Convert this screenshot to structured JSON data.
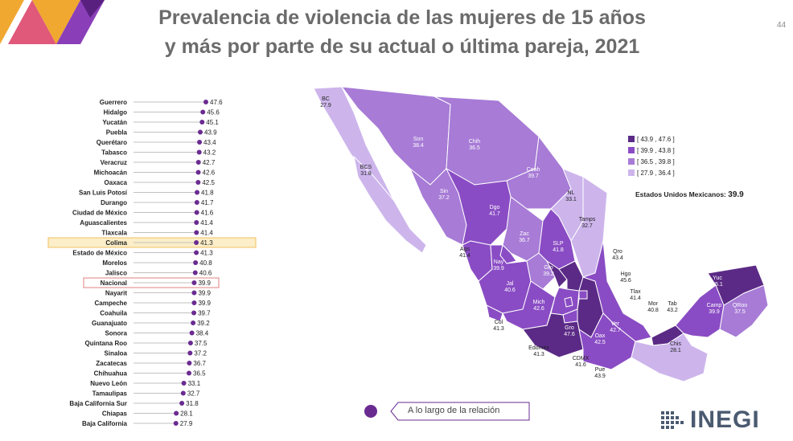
{
  "title_line1": "Prevalencia de violencia de las mujeres de 15 años",
  "title_line2": "y más por parte de su actual o última pareja, 2021",
  "page_number": "44",
  "chart_data": {
    "type": "dot",
    "title": "Prevalencia de violencia de las mujeres de 15 años y más por parte de su actual o última pareja, 2021",
    "xlim": [
      0,
      47.6
    ],
    "highlight": {
      "Colima": "#f0c060",
      "Nacional": "#e08080"
    },
    "categories": [
      "Guerrero",
      "Hidalgo",
      "Yucatán",
      "Puebla",
      "Querétaro",
      "Tabasco",
      "Veracruz",
      "Michoacán",
      "Oaxaca",
      "San Luis Potosí",
      "Durango",
      "Ciudad de México",
      "Aguascalientes",
      "Tlaxcala",
      "Colima",
      "Estado de México",
      "Morelos",
      "Jalisco",
      "Nacional",
      "Nayarit",
      "Campeche",
      "Coahuila",
      "Guanajuato",
      "Sonora",
      "Quintana Roo",
      "Sinaloa",
      "Zacatecas",
      "Chihuahua",
      "Nuevo León",
      "Tamaulipas",
      "Baja California Sur",
      "Chiapas",
      "Baja California"
    ],
    "values": [
      47.6,
      45.6,
      45.1,
      43.9,
      43.4,
      43.2,
      42.7,
      42.6,
      42.5,
      41.8,
      41.7,
      41.6,
      41.4,
      41.4,
      41.3,
      41.3,
      40.8,
      40.6,
      39.9,
      39.9,
      39.9,
      39.7,
      39.2,
      38.4,
      37.5,
      37.2,
      36.7,
      36.5,
      33.1,
      32.7,
      31.8,
      28.1,
      27.9
    ],
    "value_labels": [
      "47.6",
      "45.6",
      "45.1",
      "43.9",
      "43.4",
      "43.2",
      "42.7",
      "42.6",
      "42.5",
      "41.8",
      "41.7",
      "41.6",
      "41.4",
      "41.4",
      "41.3",
      "41.3",
      "40.8",
      "40.6",
      "39.9",
      "39.9",
      "39.9",
      "39.7",
      "39.2",
      "38.4",
      "37.5",
      "37.2",
      "36.7",
      "36.5",
      "33.1",
      "32.7",
      "31.8",
      "28.1",
      "27.9"
    ]
  },
  "legend": {
    "items": [
      {
        "label": "[ 43.9 , 47.6 ]",
        "color": "#5b2a86"
      },
      {
        "label": "[ 39.9 , 43.8 ]",
        "color": "#8a4cc4"
      },
      {
        "label": "[ 36.5 , 39.8 ]",
        "color": "#a77bd6"
      },
      {
        "label": "[ 27.9 , 36.4 ]",
        "color": "#cdb5ec"
      }
    ]
  },
  "national": {
    "label": "Estados Unidos Mexicanos:",
    "value": "39.9"
  },
  "map_labels": [
    {
      "abbr": "BC",
      "value": "27.9"
    },
    {
      "abbr": "BCS",
      "value": "31.8"
    },
    {
      "abbr": "Son",
      "value": "38.4"
    },
    {
      "abbr": "Chih",
      "value": "36.5"
    },
    {
      "abbr": "Coah",
      "value": "39.7"
    },
    {
      "abbr": "NL",
      "value": "33.1"
    },
    {
      "abbr": "Tamps",
      "value": "32.7"
    },
    {
      "abbr": "Sin",
      "value": "37.2"
    },
    {
      "abbr": "Dgo",
      "value": "41.7"
    },
    {
      "abbr": "Zac",
      "value": "36.7"
    },
    {
      "abbr": "SLP",
      "value": "41.8"
    },
    {
      "abbr": "Ags",
      "value": "41.4"
    },
    {
      "abbr": "Nay",
      "value": "39.9"
    },
    {
      "abbr": "Gto",
      "value": "39.2"
    },
    {
      "abbr": "Qro",
      "value": "43.4"
    },
    {
      "abbr": "Hgo",
      "value": "45.6"
    },
    {
      "abbr": "Jal",
      "value": "40.6"
    },
    {
      "abbr": "Mich",
      "value": "42.6"
    },
    {
      "abbr": "Tlax",
      "value": "41.4"
    },
    {
      "abbr": "Mor",
      "value": "40.8"
    },
    {
      "abbr": "Col",
      "value": "41.3"
    },
    {
      "abbr": "Gro",
      "value": "47.6"
    },
    {
      "abbr": "Edomex",
      "value": "41.3"
    },
    {
      "abbr": "CDMX",
      "value": "41.6"
    },
    {
      "abbr": "Pue",
      "value": "43.9"
    },
    {
      "abbr": "Ver",
      "value": "42.7"
    },
    {
      "abbr": "Oax",
      "value": "42.5"
    },
    {
      "abbr": "Tab",
      "value": "43.2"
    },
    {
      "abbr": "Chis",
      "value": "28.1"
    },
    {
      "abbr": "Camp",
      "value": "39.9"
    },
    {
      "abbr": "Yuc",
      "value": "45.1"
    },
    {
      "abbr": "QRoo",
      "value": "37.5"
    }
  ],
  "bottom_label": "A lo largo de la relación",
  "logo_text": "INEGI"
}
